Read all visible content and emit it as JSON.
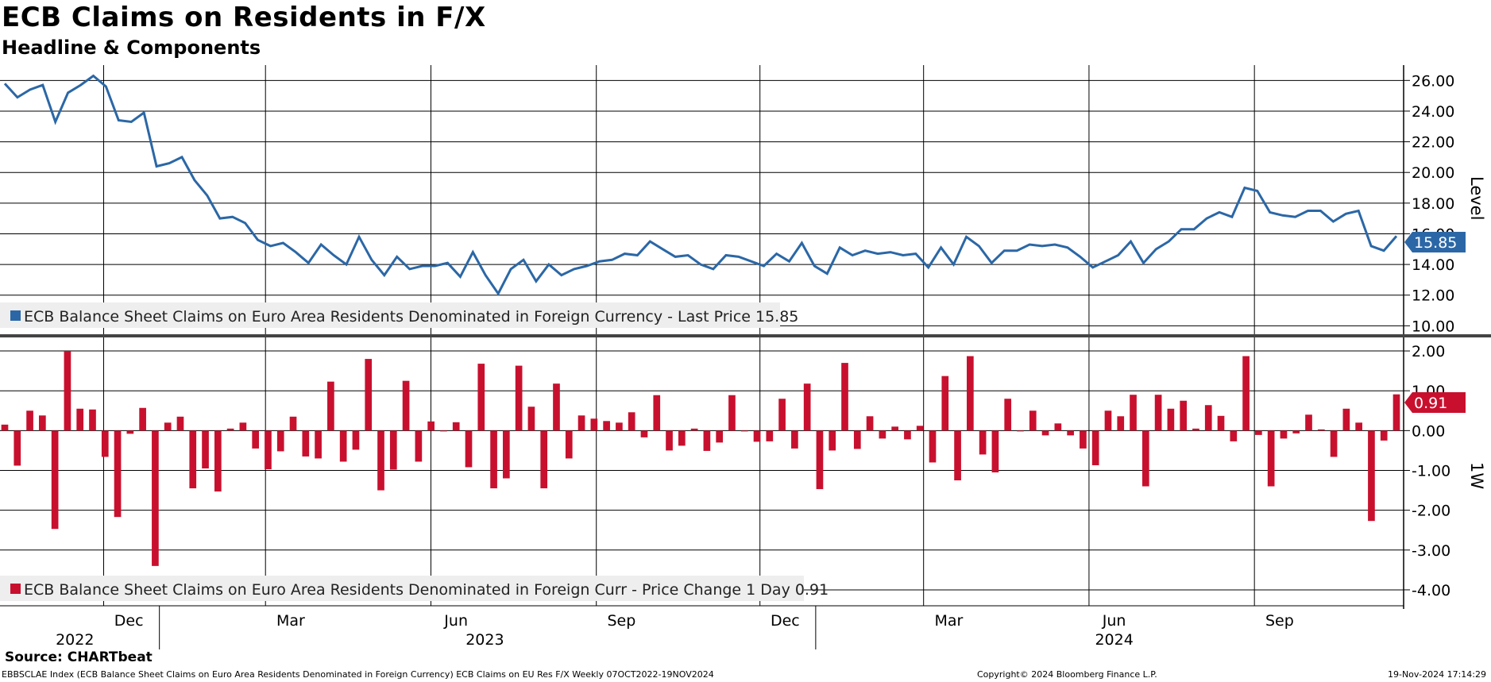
{
  "title": "ECB Claims on Residents in F/X",
  "subtitle": "Headline & Components",
  "source": "Source: CHARTbeat",
  "footer": {
    "left": "EBBSCLAE Index (ECB Balance Sheet Claims on Euro Area Residents Denominated in Foreign Currency) ECB Claims on EU Res F/X  Weekly 07OCT2022-19NOV2024",
    "copyright": "Copyright© 2024 Bloomberg Finance L.P.",
    "timestamp": "19-Nov-2024 17:14:29"
  },
  "colors": {
    "line": "#2b67a6",
    "bar": "#c8102e",
    "grid": "#000000",
    "legend_bg": "#eeeeee"
  },
  "x_axis": {
    "months": [
      "Dec",
      "Mar",
      "Jun",
      "Sep",
      "Dec",
      "Mar",
      "Jun",
      "Sep"
    ],
    "years": [
      "2022",
      "2023",
      "2024"
    ]
  },
  "chart_data": [
    {
      "type": "line",
      "x_start": "2022-10-07",
      "x_end": "2024-11-19",
      "frequency": "weekly",
      "ylabel": "Level",
      "ylim": [
        9.5,
        27
      ],
      "yticks": [
        "26.00",
        "24.00",
        "22.00",
        "20.00",
        "18.00",
        "16.00",
        "14.00",
        "12.00",
        "10.00"
      ],
      "last_value_label": "15.85",
      "legend": "ECB Balance Sheet Claims on Euro Area Residents Denominated in Foreign Currency - Last Price 15.85",
      "values": [
        25.8,
        24.9,
        25.4,
        25.7,
        23.3,
        25.2,
        25.7,
        26.3,
        25.6,
        23.4,
        23.3,
        23.9,
        20.4,
        20.6,
        21.0,
        19.5,
        18.5,
        17.0,
        17.1,
        16.7,
        15.6,
        15.2,
        15.4,
        14.8,
        14.1,
        15.3,
        14.6,
        14.0,
        15.8,
        14.3,
        13.3,
        14.5,
        13.7,
        13.9,
        13.9,
        14.1,
        13.2,
        14.8,
        13.3,
        12.1,
        13.7,
        14.3,
        12.9,
        14.0,
        13.3,
        13.7,
        13.9,
        14.2,
        14.3,
        14.7,
        14.6,
        15.5,
        15.0,
        14.5,
        14.6,
        14.0,
        13.7,
        14.6,
        14.5,
        14.2,
        13.9,
        14.7,
        14.2,
        15.4,
        13.9,
        13.4,
        15.1,
        14.6,
        14.9,
        14.7,
        14.8,
        14.6,
        14.7,
        13.8,
        15.1,
        14.0,
        15.8,
        15.2,
        14.1,
        14.9,
        14.9,
        15.3,
        15.2,
        15.3,
        15.1,
        14.5,
        13.8,
        14.2,
        14.6,
        15.5,
        14.1,
        15.0,
        15.5,
        16.3,
        16.3,
        17.0,
        17.4,
        17.1,
        19.0,
        18.8,
        17.4,
        17.2,
        17.1,
        17.5,
        17.5,
        16.8,
        17.3,
        17.5,
        15.2,
        14.9,
        15.85
      ]
    },
    {
      "type": "bar",
      "x_start": "2022-10-07",
      "x_end": "2024-11-19",
      "frequency": "weekly",
      "ylabel": "1W",
      "ylim": [
        -4.4,
        2.3
      ],
      "yticks": [
        "2.00",
        "1.00",
        "0.00",
        "-1.00",
        "-2.00",
        "-3.00",
        "-4.00"
      ],
      "last_value_label": "0.91",
      "legend": "ECB Balance Sheet Claims on Euro Area Residents Denominated in Foreign Curr - Price Change 1 Day 0.91",
      "values": [
        0.15,
        -0.88,
        0.5,
        0.38,
        -2.47,
        2.0,
        0.55,
        0.53,
        -0.66,
        -2.17,
        -0.08,
        0.57,
        -3.4,
        0.2,
        0.35,
        -1.45,
        -0.95,
        -1.53,
        0.05,
        0.2,
        -0.45,
        -0.97,
        -0.52,
        0.35,
        -0.65,
        -0.7,
        1.23,
        -0.78,
        -0.48,
        1.8,
        -1.5,
        -0.98,
        1.25,
        -0.78,
        0.23,
        0.0,
        0.21,
        -0.92,
        1.68,
        -1.45,
        -1.2,
        1.63,
        0.6,
        -1.45,
        1.18,
        -0.7,
        0.38,
        0.3,
        0.24,
        0.2,
        0.46,
        -0.17,
        0.89,
        -0.5,
        -0.38,
        0.05,
        -0.51,
        -0.3,
        0.89,
        0.0,
        -0.28,
        -0.27,
        0.8,
        -0.45,
        1.18,
        -1.47,
        -0.5,
        1.7,
        -0.46,
        0.36,
        -0.2,
        0.1,
        -0.22,
        0.12,
        -0.8,
        1.37,
        -1.25,
        1.87,
        -0.6,
        -1.05,
        0.8,
        0.0,
        0.5,
        -0.12,
        0.18,
        -0.12,
        -0.45,
        -0.87,
        0.5,
        0.36,
        0.9,
        -1.4,
        0.9,
        0.55,
        0.75,
        0.05,
        0.64,
        0.37,
        -0.27,
        1.87,
        -0.11,
        -1.4,
        -0.2,
        -0.07,
        0.4,
        0.03,
        -0.66,
        0.55,
        0.2,
        -2.27,
        -0.25,
        0.91
      ]
    }
  ]
}
